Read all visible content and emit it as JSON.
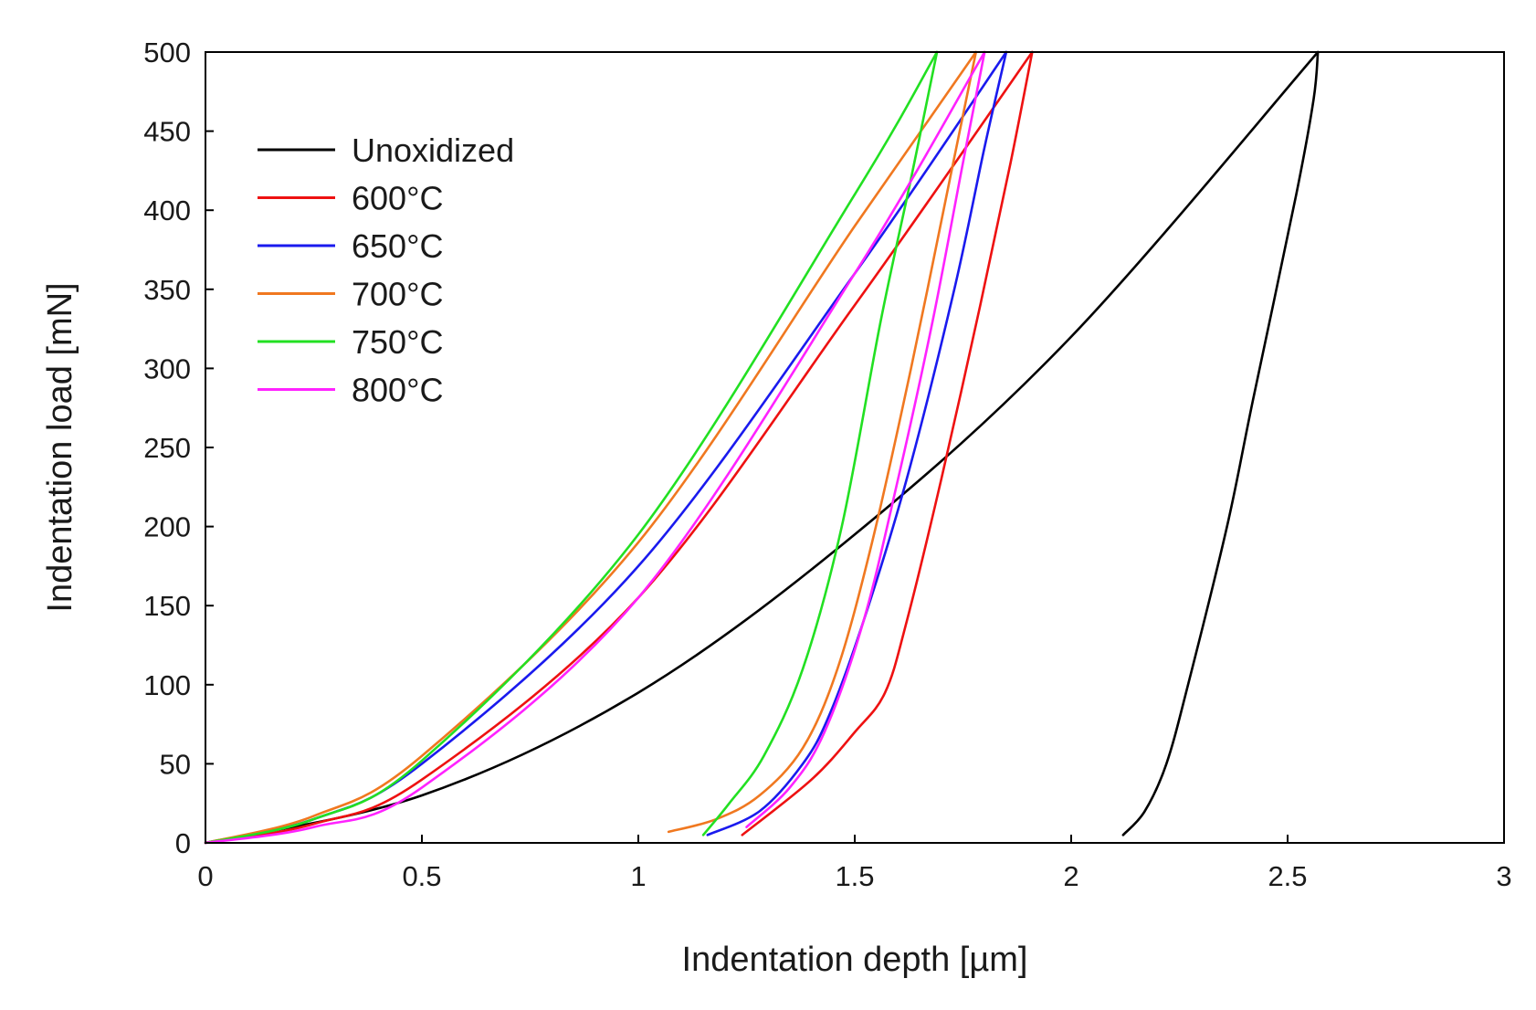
{
  "chart_data": {
    "type": "line",
    "title": "",
    "xlabel": "Indentation depth [µm]",
    "ylabel": "Indentation load [mN]",
    "xlim": [
      0,
      3
    ],
    "ylim": [
      0,
      500
    ],
    "x_ticks": [
      0,
      0.5,
      1,
      1.5,
      2,
      2.5,
      3
    ],
    "x_tick_labels": [
      "0",
      "0.5",
      "1",
      "1.5",
      "2",
      "2.5",
      "3"
    ],
    "y_ticks": [
      0,
      50,
      100,
      150,
      200,
      250,
      300,
      350,
      400,
      450,
      500
    ],
    "y_tick_labels": [
      "0",
      "50",
      "100",
      "150",
      "200",
      "250",
      "300",
      "350",
      "400",
      "450",
      "500"
    ],
    "grid": false,
    "legend_position": "top-left",
    "series": [
      {
        "name": "Unoxidized",
        "color": "#000000",
        "loading": {
          "x": [
            0,
            0.5,
            1.0,
            1.5,
            2.0,
            2.57
          ],
          "y": [
            0,
            30,
            95,
            195,
            320,
            500
          ]
        },
        "unloading": {
          "x": [
            2.57,
            2.56,
            2.52,
            2.42,
            2.36,
            2.27,
            2.22,
            2.17,
            2.12
          ],
          "y": [
            500,
            470,
            410,
            280,
            200,
            100,
            50,
            20,
            5
          ]
        }
      },
      {
        "name": "600°C",
        "color": "#ee1111",
        "loading": {
          "x": [
            0,
            0.25,
            0.5,
            1.0,
            1.5,
            1.91
          ],
          "y": [
            0,
            12,
            40,
            155,
            340,
            500
          ]
        },
        "unloading": {
          "x": [
            1.91,
            1.86,
            1.79,
            1.7,
            1.62,
            1.57,
            1.5,
            1.4,
            1.24
          ],
          "y": [
            500,
            430,
            340,
            230,
            140,
            95,
            70,
            40,
            5
          ]
        }
      },
      {
        "name": "650°C",
        "color": "#1a1aee",
        "loading": {
          "x": [
            0,
            0.25,
            0.5,
            1.0,
            1.5,
            1.85
          ],
          "y": [
            0,
            15,
            50,
            175,
            360,
            500
          ]
        },
        "unloading": {
          "x": [
            1.85,
            1.8,
            1.73,
            1.62,
            1.52,
            1.44,
            1.38,
            1.28,
            1.16
          ],
          "y": [
            500,
            440,
            350,
            230,
            140,
            80,
            50,
            20,
            5
          ]
        }
      },
      {
        "name": "700°C",
        "color": "#f07820",
        "loading": {
          "x": [
            0,
            0.25,
            0.5,
            1.0,
            1.5,
            1.78
          ],
          "y": [
            0,
            17,
            55,
            190,
            390,
            500
          ]
        },
        "unloading": {
          "x": [
            1.78,
            1.72,
            1.63,
            1.54,
            1.46,
            1.38,
            1.28,
            1.18,
            1.07
          ],
          "y": [
            500,
            420,
            300,
            190,
            110,
            60,
            30,
            15,
            7
          ]
        }
      },
      {
        "name": "750°C",
        "color": "#22e022",
        "loading": {
          "x": [
            0,
            0.25,
            0.5,
            1.0,
            1.5,
            1.69
          ],
          "y": [
            0,
            15,
            52,
            195,
            410,
            500
          ]
        },
        "unloading": {
          "x": [
            1.69,
            1.63,
            1.56,
            1.47,
            1.38,
            1.29,
            1.21,
            1.15
          ],
          "y": [
            500,
            420,
            330,
            200,
            110,
            55,
            25,
            5
          ]
        }
      },
      {
        "name": "800°C",
        "color": "#ff22ff",
        "loading": {
          "x": [
            0,
            0.25,
            0.5,
            1.0,
            1.5,
            1.8
          ],
          "y": [
            0,
            10,
            35,
            155,
            360,
            500
          ]
        },
        "unloading": {
          "x": [
            1.8,
            1.75,
            1.68,
            1.6,
            1.52,
            1.43,
            1.35,
            1.25
          ],
          "y": [
            500,
            430,
            330,
            230,
            140,
            70,
            35,
            10
          ]
        }
      }
    ]
  }
}
